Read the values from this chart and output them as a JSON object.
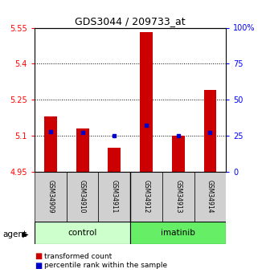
{
  "title": "GDS3044 / 209733_at",
  "samples": [
    "GSM34909",
    "GSM34910",
    "GSM34911",
    "GSM34912",
    "GSM34913",
    "GSM34914"
  ],
  "transformed_counts": [
    5.18,
    5.13,
    5.05,
    5.53,
    5.1,
    5.29
  ],
  "percentile_ranks": [
    28,
    27,
    25,
    32,
    25,
    27
  ],
  "ylim": [
    4.95,
    5.55
  ],
  "yticks": [
    4.95,
    5.1,
    5.25,
    5.4,
    5.55
  ],
  "ytick_labels": [
    "4.95",
    "5.1",
    "5.25",
    "5.4",
    "5.55"
  ],
  "y2ticks": [
    0,
    25,
    50,
    75,
    100
  ],
  "y2tick_labels": [
    "0",
    "25",
    "50",
    "75",
    "100%"
  ],
  "bar_color": "#cc0000",
  "marker_color": "#0000cc",
  "bar_bottom": 4.95,
  "control_color": "#ccffcc",
  "imatinib_color": "#66ee66",
  "grid_yticks": [
    5.1,
    5.25,
    5.4
  ],
  "legend_red": "transformed count",
  "legend_blue": "percentile rank within the sample"
}
